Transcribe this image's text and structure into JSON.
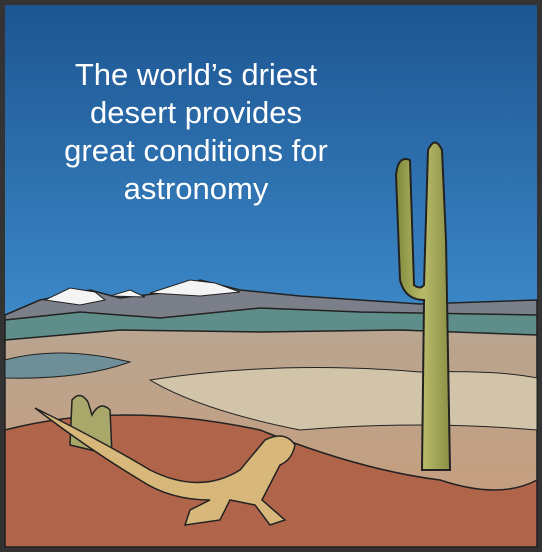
{
  "caption": [
    "The world’s driest",
    "desert provides",
    "great conditions for",
    "astronomy"
  ]
}
